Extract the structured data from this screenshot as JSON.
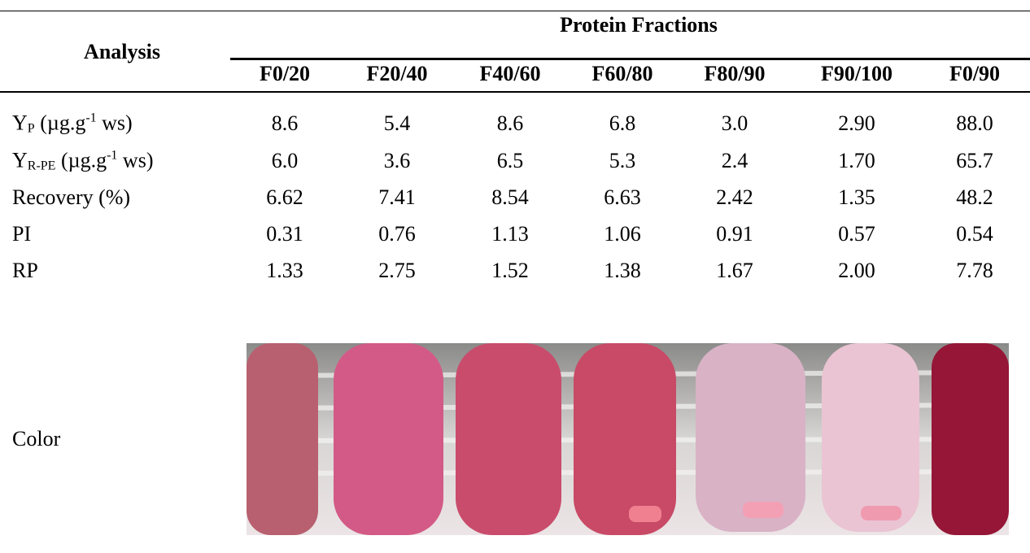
{
  "table": {
    "row_header": "Analysis",
    "group_header": "Protein Fractions",
    "columns": [
      "F0/20",
      "F20/40",
      "F40/60",
      "F60/80",
      "F80/90",
      "F90/100",
      "F0/90"
    ],
    "rows": [
      {
        "label": [
          {
            "text": "Y"
          },
          {
            "text": "P",
            "style": "sub"
          },
          {
            "text": " (µg.g"
          },
          {
            "text": "-1",
            "style": "sup"
          },
          {
            "text": " ws)"
          }
        ],
        "cells": [
          "8.6",
          "5.4",
          "8.6",
          "6.8",
          "3.0",
          "2.90",
          "88.0"
        ]
      },
      {
        "label": [
          {
            "text": "Y"
          },
          {
            "text": "R-PE",
            "style": "sub"
          },
          {
            "text": " (µg.g"
          },
          {
            "text": "-1",
            "style": "sup"
          },
          {
            "text": " ws)"
          }
        ],
        "cells": [
          "6.0",
          "3.6",
          "6.5",
          "5.3",
          "2.4",
          "1.70",
          "65.7"
        ]
      },
      {
        "label": [
          {
            "text": "Recovery (%)"
          }
        ],
        "cells": [
          "6.62",
          "7.41",
          "8.54",
          "6.63",
          "2.42",
          "1.35",
          "48.2"
        ]
      },
      {
        "label": [
          {
            "text": "PI"
          }
        ],
        "cells": [
          "0.31",
          "0.76",
          "1.13",
          "1.06",
          "0.91",
          "0.57",
          "0.54"
        ]
      },
      {
        "label": [
          {
            "text": "RP"
          }
        ],
        "cells": [
          "1.33",
          "2.75",
          "1.52",
          "1.38",
          "1.67",
          "2.00",
          "7.78"
        ]
      }
    ],
    "color_label": "Color"
  }
}
